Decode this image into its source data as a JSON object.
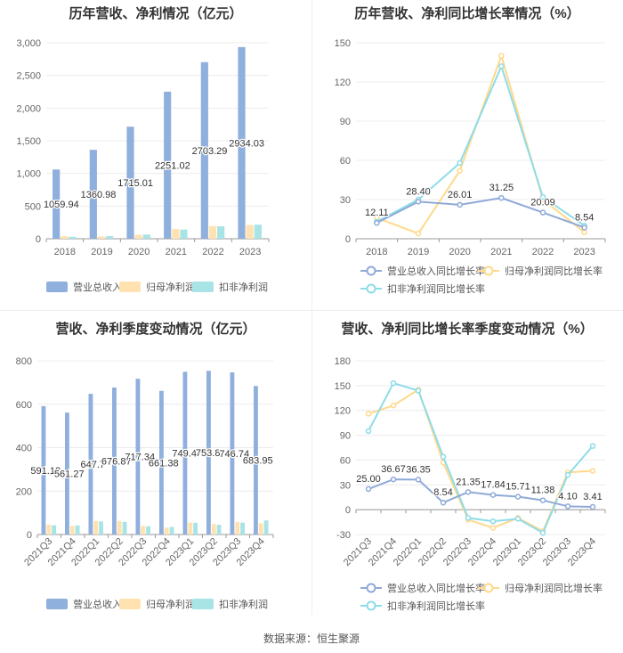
{
  "colors": {
    "revenue": "#8FAFDD",
    "netprofit": "#FFE2B0",
    "deducted": "#A8E3E6",
    "rev_line": "#8FAAD8",
    "np_line": "#FFD98A",
    "ded_line": "#8EDCE8",
    "grid": "#ececec",
    "axis_text": "#666666"
  },
  "footer": "数据来源：恒生聚源",
  "chart_data": [
    {
      "type": "bar",
      "title": "历年营收、净利情况（亿元）",
      "categories": [
        "2018",
        "2019",
        "2020",
        "2021",
        "2022",
        "2023"
      ],
      "ylim": [
        0,
        3000
      ],
      "yticks": [
        0,
        500,
        1000,
        1500,
        2000,
        2500,
        3000
      ],
      "ytick_labels": [
        "0",
        "500",
        "1,000",
        "1,500",
        "2,000",
        "2,500",
        "3,000"
      ],
      "series": [
        {
          "name": "营业总收入",
          "values": [
            1059.94,
            1360.98,
            1715.01,
            2251.02,
            2703.29,
            2934.03
          ],
          "labels": [
            "1059.94",
            "1360.98",
            "1715.01",
            "2251.02",
            "2703.29",
            "2934.03"
          ]
        },
        {
          "name": "归母净利润",
          "values": [
            40,
            35,
            60,
            150,
            195,
            210
          ]
        },
        {
          "name": "扣非净利润",
          "values": [
            30,
            40,
            65,
            140,
            190,
            215
          ]
        }
      ]
    },
    {
      "type": "line",
      "title": "历年营收、净利同比增长率情况（%）",
      "categories": [
        "2018",
        "2019",
        "2020",
        "2021",
        "2022",
        "2023"
      ],
      "ylim": [
        0,
        150
      ],
      "yticks": [
        0,
        30,
        60,
        90,
        120,
        150
      ],
      "ytick_labels": [
        "0",
        "30",
        "60",
        "90",
        "120",
        "150"
      ],
      "series": [
        {
          "name": "营业总收入同比增长率",
          "values": [
            12.11,
            28.4,
            26.01,
            31.25,
            20.09,
            8.54
          ],
          "labels": [
            "12.11",
            "28.40",
            "26.01",
            "31.25",
            "20.09",
            "8.54"
          ]
        },
        {
          "name": "归母净利润同比增长率",
          "values": [
            16,
            4,
            52,
            140,
            30,
            5
          ]
        },
        {
          "name": "扣非净利润同比增长率",
          "values": [
            13,
            30,
            58,
            132,
            32,
            10
          ]
        }
      ]
    },
    {
      "type": "bar",
      "title": "营收、净利季度变动情况（亿元）",
      "categories": [
        "2021Q3",
        "2021Q4",
        "2022Q1",
        "2022Q2",
        "2022Q3",
        "2022Q4",
        "2023Q1",
        "2023Q2",
        "2023Q3",
        "2023Q4"
      ],
      "ylim": [
        0,
        800
      ],
      "yticks": [
        0,
        200,
        400,
        600,
        800
      ],
      "ytick_labels": [
        "0",
        "200",
        "400",
        "600",
        "800"
      ],
      "series": [
        {
          "name": "营业总收入",
          "values": [
            591.12,
            561.27,
            647.7,
            676.87,
            717.34,
            661.38,
            749.47,
            753.87,
            746.74,
            683.95
          ],
          "labels": [
            "591.12",
            "561.27",
            "647.7",
            "676.87",
            "717.34",
            "661.38",
            "749.47",
            "753.87",
            "746.74",
            "683.95"
          ]
        },
        {
          "name": "归母净利润",
          "values": [
            45,
            40,
            62,
            62,
            40,
            32,
            55,
            48,
            58,
            52
          ]
        },
        {
          "name": "扣非净利润",
          "values": [
            43,
            42,
            60,
            58,
            38,
            35,
            54,
            45,
            55,
            65
          ]
        }
      ]
    },
    {
      "type": "line",
      "title": "营收、净利同比增长率季度变动情况（%）",
      "categories": [
        "2021Q3",
        "2021Q4",
        "2022Q1",
        "2022Q2",
        "2022Q3",
        "2022Q4",
        "2023Q1",
        "2023Q2",
        "2023Q3",
        "2023Q4"
      ],
      "ylim": [
        -30,
        180
      ],
      "yticks": [
        -30,
        0,
        30,
        60,
        90,
        120,
        150,
        180
      ],
      "ytick_labels": [
        "-30",
        "0",
        "30",
        "60",
        "90",
        "120",
        "150",
        "180"
      ],
      "series": [
        {
          "name": "营业总收入同比增长率",
          "values": [
            25.0,
            36.67,
            36.35,
            8.54,
            21.35,
            17.84,
            15.71,
            11.38,
            4.1,
            3.41
          ],
          "labels": [
            "25.00",
            "36.67",
            "36.35",
            "8.54",
            "21.35",
            "17.84",
            "15.71",
            "11.38",
            "4.10",
            "3.41"
          ]
        },
        {
          "name": "归母净利润同比增长率",
          "values": [
            116,
            126,
            145,
            57,
            -12,
            -22,
            -10,
            -26,
            45,
            47
          ]
        },
        {
          "name": "扣非净利润同比增长率",
          "values": [
            95,
            153,
            144,
            64,
            -10,
            -14,
            -11,
            -28,
            42,
            77
          ]
        }
      ]
    }
  ]
}
